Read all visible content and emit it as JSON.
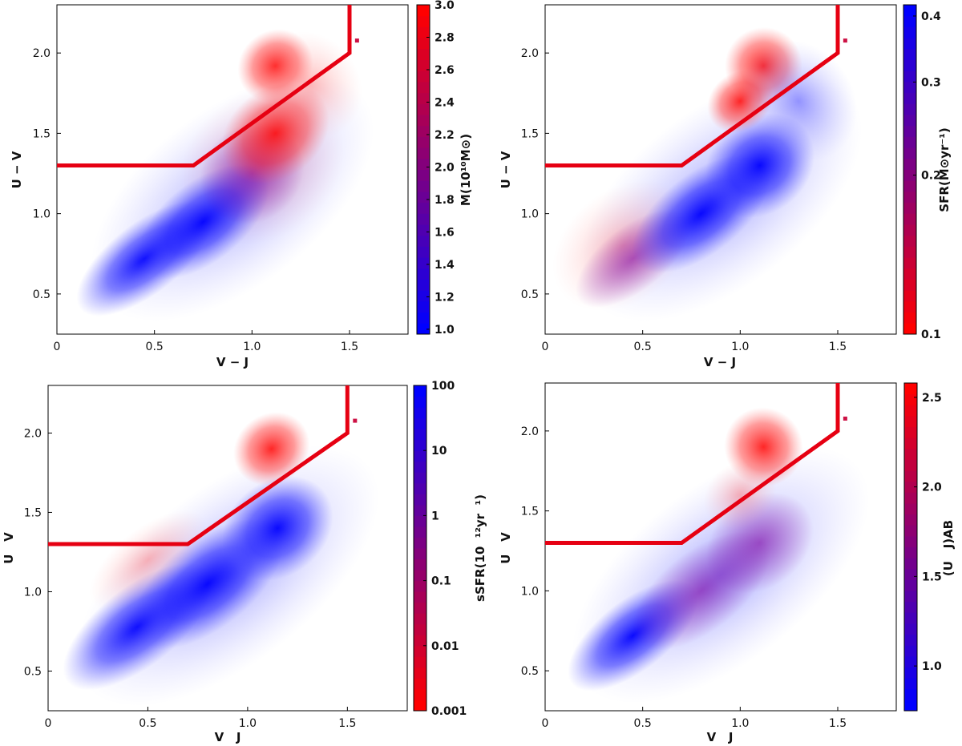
{
  "chart_data": [
    {
      "type": "scatter",
      "panel": "top-left",
      "xlabel": "V − J",
      "ylabel": "U − V",
      "xlim": [
        0,
        1.8
      ],
      "ylim": [
        0.25,
        2.3
      ],
      "xticks": [
        "0",
        "0.5",
        "1.0",
        "1.5"
      ],
      "yticks": [
        "0.5",
        "1.0",
        "1.5",
        "2.0"
      ],
      "selection_boundary": [
        [
          0,
          1.3
        ],
        [
          0.7,
          1.3
        ],
        [
          1.5,
          2.0
        ],
        [
          1.5,
          2.3
        ]
      ],
      "colorbar": {
        "label": "M(10¹⁰M⊙)",
        "scale": "linear",
        "range": [
          0.97,
          3.0
        ],
        "ticks": [
          "1.0",
          "1.2",
          "1.4",
          "1.6",
          "1.8",
          "2.0",
          "2.2",
          "2.4",
          "2.6",
          "2.8",
          "3.0"
        ],
        "low_color": "#0000ff",
        "high_color": "#ff0000"
      },
      "regions": {
        "blue_sequence_core": {
          "x": 0.35,
          "y": 0.65
        },
        "red_clump": {
          "x": 1.1,
          "y": 1.95
        }
      }
    },
    {
      "type": "scatter",
      "panel": "top-right",
      "xlabel": "V − J",
      "ylabel": "U − V",
      "xlim": [
        0,
        1.8
      ],
      "ylim": [
        0.25,
        2.3
      ],
      "xticks": [
        "0",
        "0.5",
        "1.0",
        "1.5"
      ],
      "yticks": [
        "0.5",
        "1.0",
        "1.5",
        "2.0"
      ],
      "selection_boundary": [
        [
          0,
          1.3
        ],
        [
          0.7,
          1.3
        ],
        [
          1.5,
          2.0
        ],
        [
          1.5,
          2.3
        ]
      ],
      "colorbar": {
        "label": "SFR(M⊙yr⁻¹)",
        "scale": "log",
        "range": [
          0.1,
          0.42
        ],
        "ticks": [
          "0.1",
          "0.2",
          "0.3",
          "0.4"
        ],
        "low_color": "#ff0000",
        "high_color": "#0000ff"
      }
    },
    {
      "type": "scatter",
      "panel": "bottom-left",
      "xlabel": "V   J",
      "ylabel": "U   V",
      "xlim": [
        0,
        1.8
      ],
      "ylim": [
        0.25,
        2.3
      ],
      "xticks": [
        "0",
        "0.5",
        "1.0",
        "1.5"
      ],
      "yticks": [
        "0.5",
        "1.0",
        "1.5",
        "2.0"
      ],
      "selection_boundary": [
        [
          0,
          1.3
        ],
        [
          0.7,
          1.3
        ],
        [
          1.5,
          2.0
        ],
        [
          1.5,
          2.3
        ]
      ],
      "colorbar": {
        "label": "sSFR(10  ¹²yr  ¹)",
        "scale": "log",
        "range": [
          0.001,
          100
        ],
        "ticks": [
          "0.001",
          "0.01",
          "0.1",
          "1",
          "10",
          "100"
        ],
        "low_color": "#ff0000",
        "high_color": "#0000ff"
      }
    },
    {
      "type": "scatter",
      "panel": "bottom-right",
      "xlabel": "V   J",
      "ylabel": "U   V",
      "xlim": [
        0,
        1.8
      ],
      "ylim": [
        0.25,
        2.3
      ],
      "xticks": [
        "0",
        "0.5",
        "1.0",
        "1.5"
      ],
      "yticks": [
        "0.5",
        "1.0",
        "1.5",
        "2.0"
      ],
      "selection_boundary": [
        [
          0,
          1.3
        ],
        [
          0.7,
          1.3
        ],
        [
          1.5,
          2.0
        ],
        [
          1.5,
          2.3
        ]
      ],
      "colorbar": {
        "label": "(U   J)AB",
        "scale": "linear",
        "range": [
          0.75,
          2.58
        ],
        "ticks": [
          "1.0",
          "1.5",
          "2.0",
          "2.5"
        ],
        "low_color": "#0000ff",
        "high_color": "#ff0000"
      }
    }
  ],
  "boundary_color": "#e60012",
  "marker_color": "#cc1144"
}
